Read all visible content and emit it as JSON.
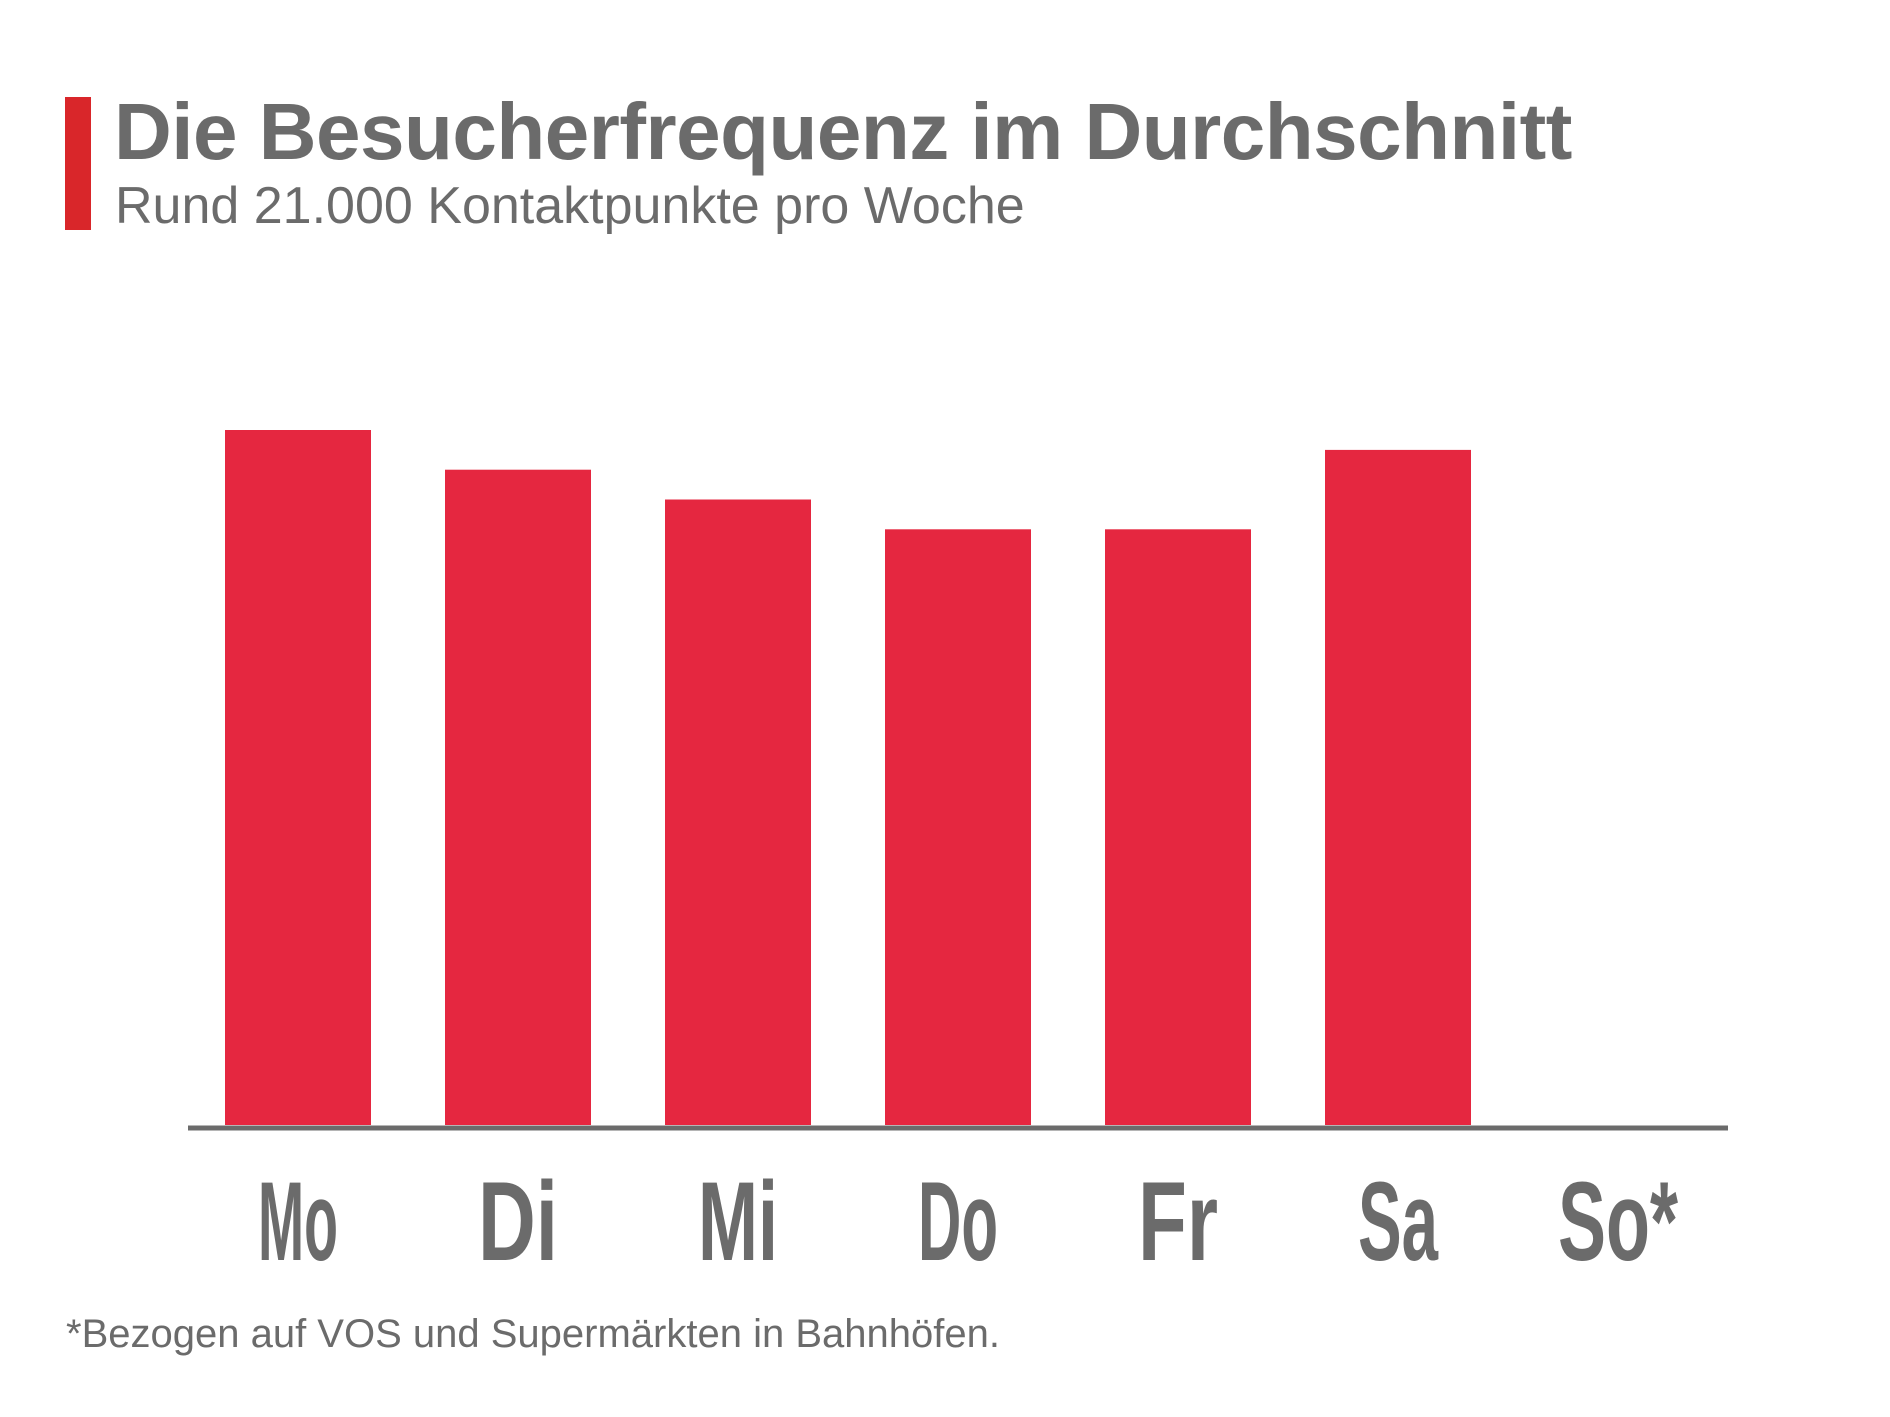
{
  "header": {
    "title": "Die Besucherfrequenz im Durchschnitt",
    "subtitle": "Rund 21.000 Kontaktpunkte pro Woche"
  },
  "footnote": "*Bezogen auf VOS und Supermärkten in Bahnhöfen.",
  "colors": {
    "bar": "#e52740",
    "accent": "#d9262a",
    "text": "#6b6b6b",
    "axis": "#6b6b6b"
  },
  "chart_data": {
    "type": "bar",
    "title": "Die Besucherfrequenz im Durchschnitt",
    "subtitle": "Rund 21.000 Kontaktpunkte pro Woche",
    "xlabel": "",
    "ylabel": "",
    "categories": [
      "Mo",
      "Di",
      "Mi",
      "Do",
      "Fr",
      "Sa",
      "So*"
    ],
    "values": [
      3500,
      3300,
      3150,
      3000,
      3000,
      3400,
      0
    ],
    "ylim": [
      0,
      3500
    ],
    "y_axis_shown": false,
    "grid": false,
    "legend": "none"
  }
}
